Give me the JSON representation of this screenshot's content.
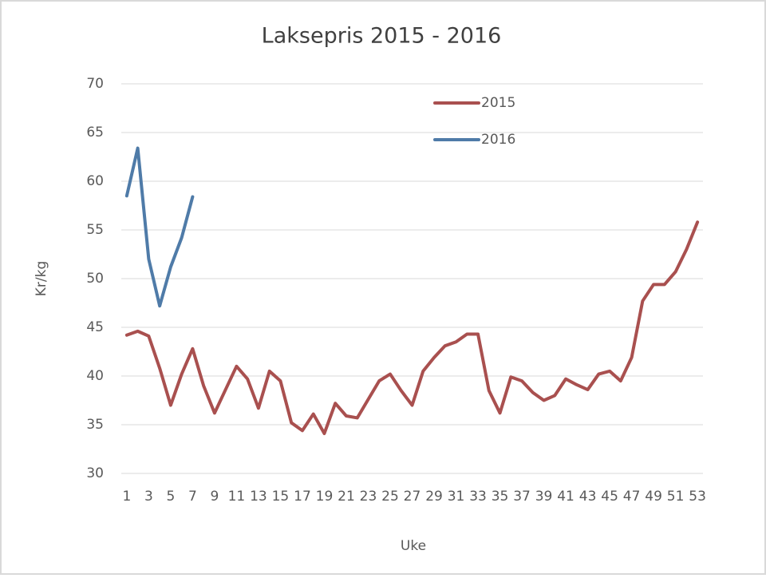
{
  "chart_data": {
    "type": "line",
    "title": "Laksepris 2015 - 2016",
    "xlabel": "Uke",
    "ylabel": "Kr/kg",
    "categories": [
      1,
      null,
      3,
      null,
      5,
      null,
      7,
      null,
      9,
      null,
      11,
      null,
      13,
      null,
      15,
      null,
      17,
      null,
      19,
      null,
      21,
      null,
      23,
      null,
      25,
      null,
      27,
      null,
      29,
      null,
      31,
      null,
      33,
      null,
      35,
      null,
      37,
      null,
      39,
      null,
      41,
      null,
      43,
      null,
      45,
      null,
      47,
      null,
      49,
      null,
      51,
      null,
      53
    ],
    "series": [
      {
        "name": "2015",
        "color": "#a9504f",
        "values": [
          44.2,
          44.6,
          44.1,
          40.8,
          37.0,
          40.2,
          42.8,
          39.0,
          36.2,
          38.6,
          41.0,
          39.7,
          36.7,
          40.5,
          39.5,
          35.2,
          34.4,
          36.1,
          34.1,
          37.2,
          35.9,
          35.7,
          37.6,
          39.5,
          40.2,
          38.5,
          37.0,
          40.5,
          41.9,
          43.1,
          43.5,
          44.3,
          44.3,
          38.5,
          36.2,
          39.9,
          39.5,
          38.3,
          37.5,
          38.0,
          39.7,
          39.1,
          38.6,
          40.2,
          40.5,
          39.5,
          41.9,
          47.7,
          49.4,
          49.4,
          50.7,
          53.0,
          55.8
        ]
      },
      {
        "name": "2016",
        "color": "#4f7ba8",
        "values": [
          58.5,
          63.4,
          52.0,
          47.2,
          51.2,
          54.2,
          58.4,
          null,
          null,
          null,
          null,
          null,
          null,
          null,
          null,
          null,
          null,
          null,
          null,
          null,
          null,
          null,
          null,
          null,
          null,
          null,
          null,
          null,
          null,
          null,
          null,
          null,
          null,
          null,
          null,
          null,
          null,
          null,
          null,
          null,
          null,
          null,
          null,
          null,
          null,
          null,
          null,
          null,
          null,
          null,
          null,
          null,
          null
        ]
      }
    ],
    "ylim": [
      30,
      70
    ],
    "yticks": [
      30,
      35,
      40,
      45,
      50,
      55,
      60,
      65,
      70
    ],
    "grid": true,
    "legend": "top"
  }
}
